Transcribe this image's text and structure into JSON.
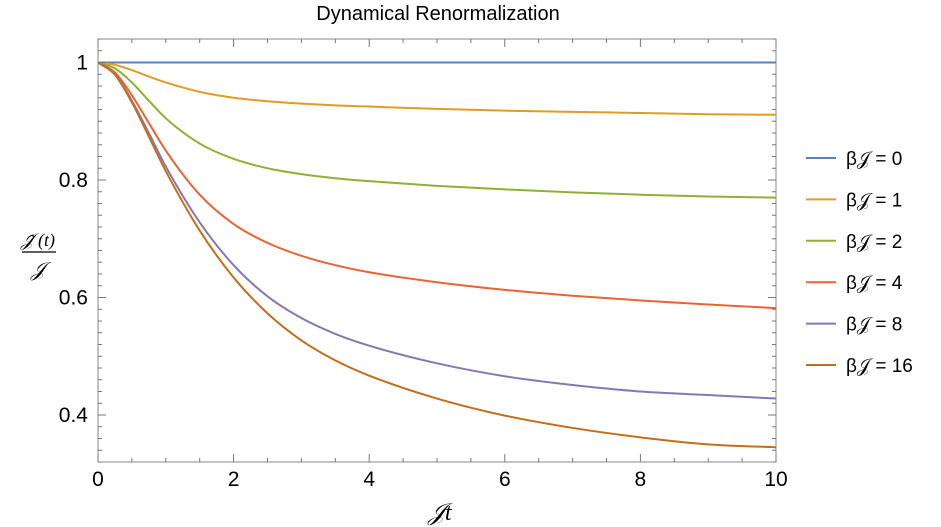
{
  "chart_data": {
    "type": "line",
    "title": "Dynamical Renormalization",
    "xlabel": "𝒥t",
    "ylabel": {
      "numerator": "𝒥̃ (t)",
      "denominator": "𝒥"
    },
    "xlim": [
      0,
      10
    ],
    "ylim": [
      0.32,
      1.04
    ],
    "xticks": [
      "0",
      "2",
      "4",
      "6",
      "8",
      "10"
    ],
    "yticks": [
      "0.4",
      "0.6",
      "0.8",
      "1"
    ],
    "grid": false,
    "legend_position": "right",
    "x": [
      0,
      0.25,
      0.5,
      0.75,
      1,
      1.5,
      2,
      2.5,
      3,
      3.5,
      4,
      5,
      6,
      7,
      8,
      9,
      10
    ],
    "series": [
      {
        "name": "β𝒥 = 0",
        "color": "#5e81b5",
        "values": [
          1,
          1,
          1,
          1,
          1,
          1,
          1,
          1,
          1,
          1,
          1,
          1,
          1,
          1,
          1,
          1,
          1
        ]
      },
      {
        "name": "β𝒥 = 1",
        "color": "#e19c24",
        "values": [
          1,
          0.996,
          0.987,
          0.976,
          0.966,
          0.95,
          0.94,
          0.934,
          0.93,
          0.927,
          0.925,
          0.921,
          0.918,
          0.916,
          0.914,
          0.912,
          0.911
        ]
      },
      {
        "name": "β𝒥 = 2",
        "color": "#8fb032",
        "values": [
          1,
          0.99,
          0.966,
          0.935,
          0.905,
          0.862,
          0.836,
          0.82,
          0.81,
          0.803,
          0.798,
          0.79,
          0.784,
          0.779,
          0.775,
          0.772,
          0.77
        ]
      },
      {
        "name": "β𝒥 = 4",
        "color": "#eb6235",
        "values": [
          1,
          0.983,
          0.944,
          0.897,
          0.85,
          0.775,
          0.725,
          0.693,
          0.671,
          0.655,
          0.643,
          0.626,
          0.613,
          0.603,
          0.595,
          0.588,
          0.582
        ]
      },
      {
        "name": "β𝒥 = 8",
        "color": "#8778b3",
        "values": [
          1,
          0.98,
          0.935,
          0.88,
          0.823,
          0.728,
          0.655,
          0.602,
          0.565,
          0.538,
          0.518,
          0.488,
          0.466,
          0.451,
          0.44,
          0.434,
          0.428
        ]
      },
      {
        "name": "β𝒥 = 16",
        "color": "#c56e1a",
        "values": [
          1,
          0.979,
          0.932,
          0.874,
          0.815,
          0.714,
          0.634,
          0.573,
          0.527,
          0.493,
          0.467,
          0.428,
          0.399,
          0.378,
          0.362,
          0.35,
          0.345
        ]
      }
    ]
  }
}
